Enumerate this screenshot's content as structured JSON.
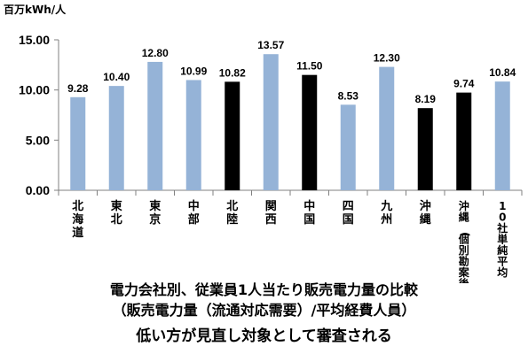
{
  "chart_data": {
    "type": "bar",
    "unit_label": "百万kWh/人",
    "categories": [
      "北海道",
      "東北",
      "東京",
      "中部",
      "北陸",
      "関西",
      "中国",
      "四国",
      "九州",
      "沖縄",
      "沖縄(個別勘案後)",
      "10社単純平均"
    ],
    "values": [
      9.28,
      10.4,
      12.8,
      10.99,
      10.82,
      13.57,
      11.5,
      8.53,
      12.3,
      8.19,
      9.74,
      10.84
    ],
    "value_labels": [
      "9.28",
      "10.40",
      "12.80",
      "10.99",
      "10.82",
      "13.57",
      "11.50",
      "8.53",
      "12.30",
      "8.19",
      "9.74",
      "10.84"
    ],
    "bar_colors": [
      "#95B3D7",
      "#95B3D7",
      "#95B3D7",
      "#95B3D7",
      "#000000",
      "#95B3D7",
      "#000000",
      "#95B3D7",
      "#95B3D7",
      "#000000",
      "#000000",
      "#95B3D7"
    ],
    "y_ticks": [
      "0.00",
      "5.00",
      "10.00",
      "15.00"
    ],
    "ylim": [
      0,
      15
    ],
    "grid": false,
    "legend": false
  },
  "captions": {
    "line1": "電力会社別、従業員1人当たり販売電力量の比較",
    "line2": "（販売電力量（流通対応需要）/平均経費人員）",
    "line3": "低い方が見直し対象として審査される"
  }
}
